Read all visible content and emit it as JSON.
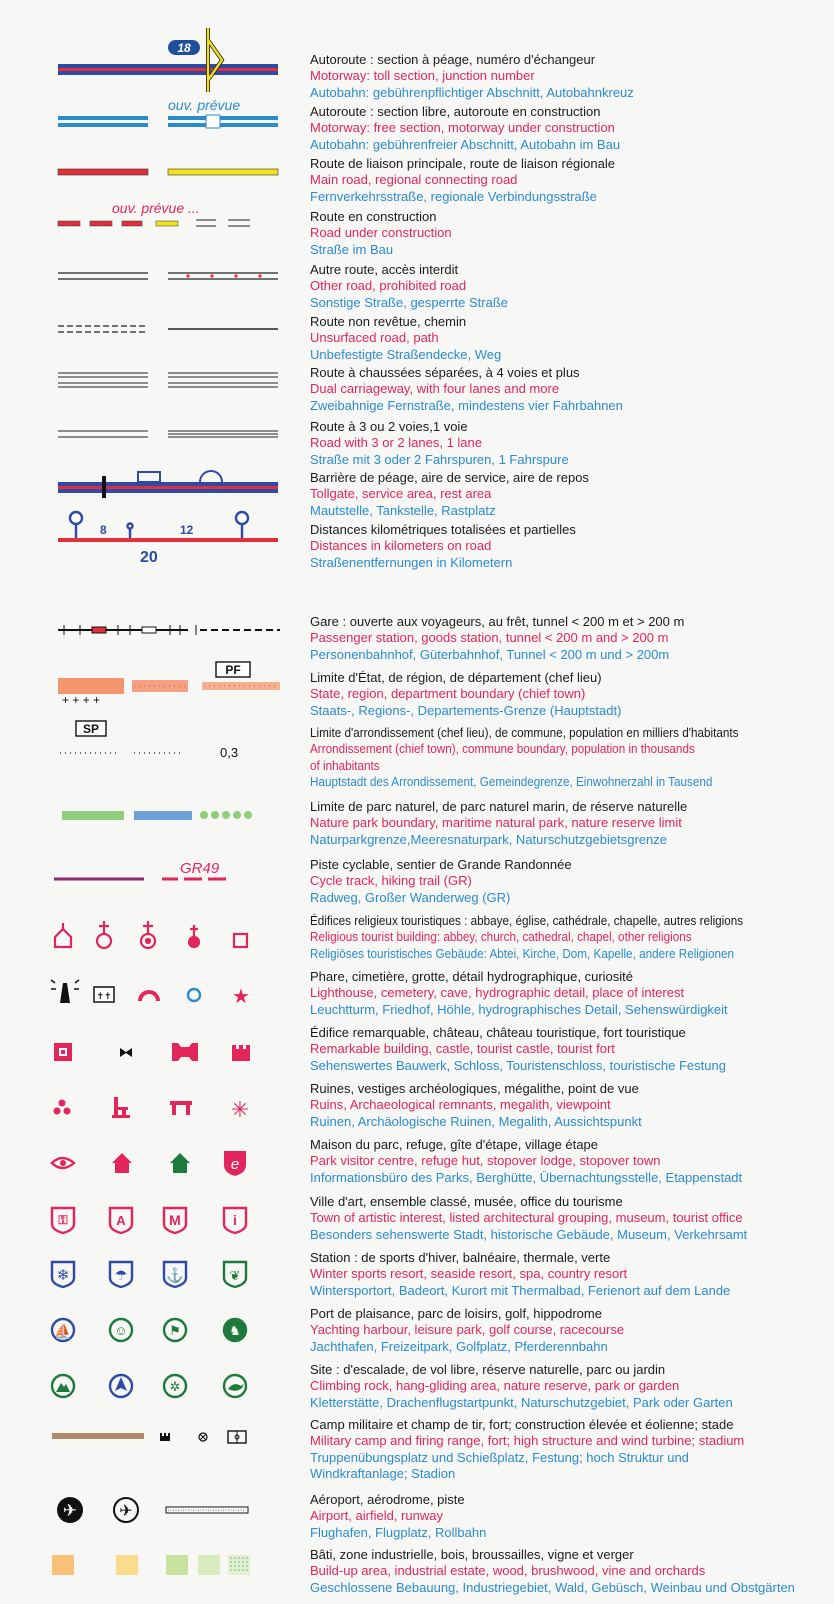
{
  "colors": {
    "french": "#1b1b1b",
    "english": "#e2265c",
    "german": "#2a8bcf",
    "motorway_blue": "#2d4aa6",
    "road_red": "#e2303a",
    "road_yellow": "#f2e21e"
  },
  "symbol_labels": {
    "junction_number": "18",
    "planned_opening_motorway": "ouv. prévue",
    "planned_opening_road": "ouv. prévue ...",
    "partial_distance_1": "8",
    "partial_distance_2": "12",
    "total_distance": "20",
    "prefecture": "PF",
    "sub_prefecture": "SP",
    "population": "0,3",
    "gr_trail": "GR49"
  },
  "entries": [
    {
      "fr": [
        "Autoroute : section à péage, numéro d'échangeur"
      ],
      "en": [
        "Motorway: toll section, junction number"
      ],
      "de": [
        "Autobahn: gebührenpflichtiger Abschnitt, Autobahnkreuz"
      ]
    },
    {
      "fr": [
        "Autoroute : section libre, autoroute en construction"
      ],
      "en": [
        "Motorway: free section, motorway under construction"
      ],
      "de": [
        "Autobahn: gebührenfreier Abschnitt, Autobahn im Bau"
      ]
    },
    {
      "fr": [
        "Route de liaison principale, route de liaison régionale"
      ],
      "en": [
        "Main road, regional connecting road"
      ],
      "de": [
        "Fernverkehrsstraße, regionale Verbindungsstraße"
      ]
    },
    {
      "fr": [
        "Route en construction"
      ],
      "en": [
        "Road under construction"
      ],
      "de": [
        "Straße im Bau"
      ]
    },
    {
      "fr": [
        "Autre route, accès interdit"
      ],
      "en": [
        "Other road, prohibited road"
      ],
      "de": [
        "Sonstige Straße, gesperrte Straße"
      ]
    },
    {
      "fr": [
        "Route non revêtue, chemin"
      ],
      "en": [
        "Unsurfaced road, path"
      ],
      "de": [
        "Unbefestigte Straßendecke, Weg"
      ]
    },
    {
      "fr": [
        "Route à chaussées séparées, à 4 voies et plus"
      ],
      "en": [
        "Dual carriageway, with four lanes and more"
      ],
      "de": [
        "Zweibahnige Fernstraße, mindestens vier Fahrbahnen"
      ]
    },
    {
      "fr": [
        "Route à 3 ou 2 voies,1 voie"
      ],
      "en": [
        "Road with 3 or 2 lanes, 1 lane"
      ],
      "de": [
        "Straße mit 3 oder 2 Fahrspuren, 1 Fahrspure"
      ]
    },
    {
      "fr": [
        "Barrière de péage, aire de service, aire de repos"
      ],
      "en": [
        "Tollgate, service area, rest area"
      ],
      "de": [
        "Mautstelle, Tankstelle, Rastplatz"
      ]
    },
    {
      "fr": [
        "Distances kilométriques totalisées et partielles"
      ],
      "en": [
        "Distances in kilometers on road"
      ],
      "de": [
        "Straßenentfernungen in Kilometern"
      ]
    },
    {
      "fr": [
        "Gare : ouverte aux voyageurs, au frêt, tunnel < 200 m et > 200 m"
      ],
      "en": [
        "Passenger station, goods station, tunnel < 200 m and > 200 m"
      ],
      "de": [
        "Personenbahnhof, Güterbahnhof, Tunnel < 200 m und > 200m"
      ]
    },
    {
      "fr": [
        "Limite d'État, de région, de département (chef lieu)"
      ],
      "en": [
        "State, region, department boundary (chief town)"
      ],
      "de": [
        "Staats-, Regions-, Departements-Grenze (Hauptstadt)"
      ]
    },
    {
      "fr": [
        "Limite d'arrondissement (chef lieu), de commune, population en milliers d'habitants"
      ],
      "en": [
        "Arrondissement (chief town), commune boundary, population in thousands",
        "of inhabitants"
      ],
      "de": [
        "Hauptstadt des Arrondissement, Gemeindegrenze, Einwohnerzahl in Tausend"
      ]
    },
    {
      "fr": [
        "Limite de parc naturel, de parc naturel marin, de réserve naturelle"
      ],
      "en": [
        "Nature park boundary, maritime natural park, nature reserve limit"
      ],
      "de": [
        "Naturparkgrenze,Meeresnaturpark, Naturschutzgebietsgrenze"
      ]
    },
    {
      "fr": [
        "Piste cyclable, sentier de Grande Randonnée"
      ],
      "en": [
        "Cycle track, hiking trail (GR)"
      ],
      "de": [
        "Radweg, Großer Wanderweg (GR)"
      ]
    },
    {
      "fr": [
        "Édifices religieux touristiques : abbaye, église, cathédrale, chapelle, autres religions"
      ],
      "en": [
        "Religious tourist building: abbey, church, cathedral, chapel, other religions"
      ],
      "de": [
        "Religiöses touristisches Gebäude: Abtei, Kirche, Dom, Kapelle, andere Religionen"
      ]
    },
    {
      "fr": [
        "Phare, cimetière, grotte, détail hydrographique, curiosité"
      ],
      "en": [
        "Lighthouse, cemetery, cave, hydrographic detail, place of interest"
      ],
      "de": [
        "Leuchtturm, Friedhof, Höhle, hydrographisches Detail, Sehenswürdigkeit"
      ]
    },
    {
      "fr": [
        "Édifice remarquable, château, château touristique, fort touristique"
      ],
      "en": [
        "Remarkable building, castle, tourist castle, tourist fort"
      ],
      "de": [
        "Sehenswertes Bauwerk, Schloss, Touristenschloss, touristische Festung"
      ]
    },
    {
      "fr": [
        "Ruines, vestiges archéologiques, mégalithe, point de vue"
      ],
      "en": [
        "Ruins, Archaeological remnants, megalith, viewpoint"
      ],
      "de": [
        "Ruinen, Archäologische Ruinen, Megalith, Aussichtspunkt"
      ]
    },
    {
      "fr": [
        "Maison du parc, refuge, gîte d'étape, village étape"
      ],
      "en": [
        "Park visitor centre, refuge hut, stopover lodge, stopover town"
      ],
      "de": [
        "Informationsbüro des Parks, Berghütte, Übernachtungsstelle, Etappenstadt"
      ]
    },
    {
      "fr": [
        "Ville d'art, ensemble classé, musée, office du tourisme"
      ],
      "en": [
        "Town of artistic interest, listed architectural grouping, museum, tourist office"
      ],
      "de": [
        "Besonders sehenswerte Stadt, historische Gebäude, Museum, Verkehrsamt"
      ]
    },
    {
      "fr": [
        "Station : de sports d'hiver, balnéaire, thermale, verte"
      ],
      "en": [
        "Winter sports resort, seaside resort, spa, country resort"
      ],
      "de": [
        "Wintersportort, Badeort, Kurort mit Thermalbad, Ferienort auf dem Lande"
      ]
    },
    {
      "fr": [
        "Port de plaisance, parc de loisirs, golf, hippodrome"
      ],
      "en": [
        "Yachting harbour, leisure park, golf course, racecourse"
      ],
      "de": [
        "Jachthafen, Freizeitpark, Golfplatz, Pferderennbahn"
      ]
    },
    {
      "fr": [
        "Site : d'escalade, de vol libre, réserve naturelle, parc ou jardin"
      ],
      "en": [
        "Climbing rock, hang-gliding area, nature reserve, park or garden"
      ],
      "de": [
        "Kletterstätte, Drachenflugstartpunkt, Naturschutzgebiet, Park oder Garten"
      ]
    },
    {
      "fr": [
        "Camp militaire et champ de tir, fort; construction élevée et éolienne; stade"
      ],
      "en": [
        "Military camp and firing range, fort; high structure and wind turbine; stadium"
      ],
      "de": [
        "Truppenübungsplatz und Schießplatz, Festung; hoch Struktur und",
        "Windkraftanlage; Stadion"
      ]
    },
    {
      "fr": [
        "Aéroport, aérodrome, piste"
      ],
      "en": [
        "Airport, airfield, runway"
      ],
      "de": [
        "Flughafen, Flugplatz, Rollbahn"
      ]
    },
    {
      "fr": [
        "Bâti, zone industrielle, bois, broussailles, vigne et verger"
      ],
      "en": [
        "Build-up area, industrial estate, wood, brushwood, vine and orchards"
      ],
      "de": [
        "Geschlossene Bebauung, Industriegebiet, Wald, Gebüsch, Weinbau und Obstgärten"
      ]
    }
  ]
}
